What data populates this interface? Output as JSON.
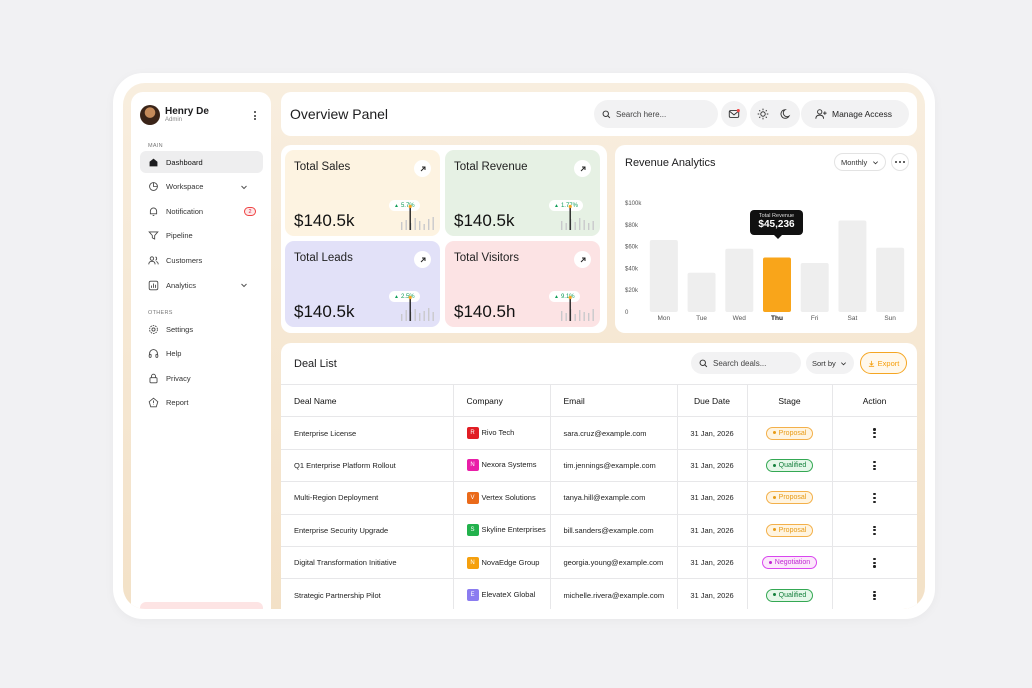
{
  "user": {
    "name": "Henry De",
    "role": "Admin"
  },
  "sidebar": {
    "main_label": "MAIN",
    "others_label": "OTHERS",
    "main_items": [
      {
        "label": "Dashboard",
        "icon": "home-icon",
        "active": true
      },
      {
        "label": "Workspace",
        "icon": "workspace-icon",
        "chevron": true
      },
      {
        "label": "Notification",
        "icon": "bell-icon",
        "badge": "2"
      },
      {
        "label": "Pipeline",
        "icon": "filter-icon"
      },
      {
        "label": "Customers",
        "icon": "users-icon"
      },
      {
        "label": "Analytics",
        "icon": "chart-icon",
        "chevron": true
      }
    ],
    "other_items": [
      {
        "label": "Settings",
        "icon": "gear-icon"
      },
      {
        "label": "Help",
        "icon": "headset-icon"
      },
      {
        "label": "Privacy",
        "icon": "lock-icon"
      },
      {
        "label": "Report",
        "icon": "alert-icon"
      }
    ]
  },
  "header": {
    "title": "Overview Panel",
    "search_placeholder": "Search here...",
    "manage_label": "Manage Access"
  },
  "stats": [
    {
      "title": "Total Sales",
      "value": "$140.5k",
      "change": "5.7%",
      "bg": "#fdf3e1"
    },
    {
      "title": "Total Revenue",
      "value": "$140.5k",
      "change": "1.77%",
      "bg": "#e6f1e4"
    },
    {
      "title": "Total Leads",
      "value": "$140.5k",
      "change": "2.5%",
      "bg": "#e2e1f8"
    },
    {
      "title": "Total Visitors",
      "value": "$140.5h",
      "change": "9.1%",
      "bg": "#fce3e4"
    }
  ],
  "analytics": {
    "title": "Revenue Analytics",
    "period": "Monthly",
    "tooltip_label": "Total Revenue",
    "tooltip_value": "$45,236"
  },
  "chart_data": {
    "type": "bar",
    "title": "Revenue Analytics",
    "categories": [
      "Mon",
      "Tue",
      "Wed",
      "Thu",
      "Fri",
      "Sat",
      "Sun"
    ],
    "values": [
      66000,
      36000,
      58000,
      50000,
      45000,
      84000,
      59000
    ],
    "highlight_index": 3,
    "y_ticks": [
      "$100k",
      "$80k",
      "$60k",
      "$40k",
      "$20k",
      "0"
    ],
    "ylim": [
      0,
      100000
    ],
    "colors": {
      "bar": "#eeeeee",
      "highlight": "#f9a51a"
    }
  },
  "deals": {
    "title": "Deal List",
    "search_placeholder": "Search deals...",
    "sort_label": "Sort by",
    "export_label": "Export",
    "columns": [
      "Deal Name",
      "Company",
      "Email",
      "Due Date",
      "Stage",
      "Action"
    ],
    "rows": [
      {
        "deal": "Enterprise License",
        "company": "Rivo Tech",
        "initial": "R",
        "logo_color": "#e11d24",
        "email": "sara.cruz@example.com",
        "due": "31 Jan, 2026",
        "stage": "Proposal"
      },
      {
        "deal": "Q1 Enterprise Platform Rollout",
        "company": "Nexora Systems",
        "initial": "N",
        "logo_color": "#e91ea8",
        "email": "tim.jennings@example.com",
        "due": "31 Jan, 2026",
        "stage": "Qualified"
      },
      {
        "deal": "Multi-Region Deployment",
        "company": "Vertex Solutions",
        "initial": "V",
        "logo_color": "#ea6a1a",
        "email": "tanya.hill@example.com",
        "due": "31 Jan, 2026",
        "stage": "Proposal"
      },
      {
        "deal": "Enterprise Security Upgrade",
        "company": "Skyline Enterprises",
        "initial": "S",
        "logo_color": "#22b14c",
        "email": "bill.sanders@example.com",
        "due": "31 Jan, 2026",
        "stage": "Proposal"
      },
      {
        "deal": "Digital Transformation Initiative",
        "company": "NovaEdge Group",
        "initial": "N",
        "logo_color": "#f5a00e",
        "email": "georgia.young@example.com",
        "due": "31 Jan, 2026",
        "stage": "Negotiation"
      },
      {
        "deal": "Strategic Partnership Pilot",
        "company": "ElevateX Global",
        "initial": "E",
        "logo_color": "#8b7cf0",
        "email": "michelle.rivera@example.com",
        "due": "31 Jan, 2026",
        "stage": "Qualified"
      }
    ]
  },
  "stage_colors": {
    "Proposal": {
      "fg": "#e89b16",
      "bg": "#fff4e0",
      "border": "#f3b04a"
    },
    "Qualified": {
      "fg": "#15803d",
      "bg": "#e5f7e9",
      "border": "#34a853"
    },
    "Negotiation": {
      "fg": "#c026d3",
      "bg": "#fce8fb",
      "border": "#d946ef"
    }
  }
}
